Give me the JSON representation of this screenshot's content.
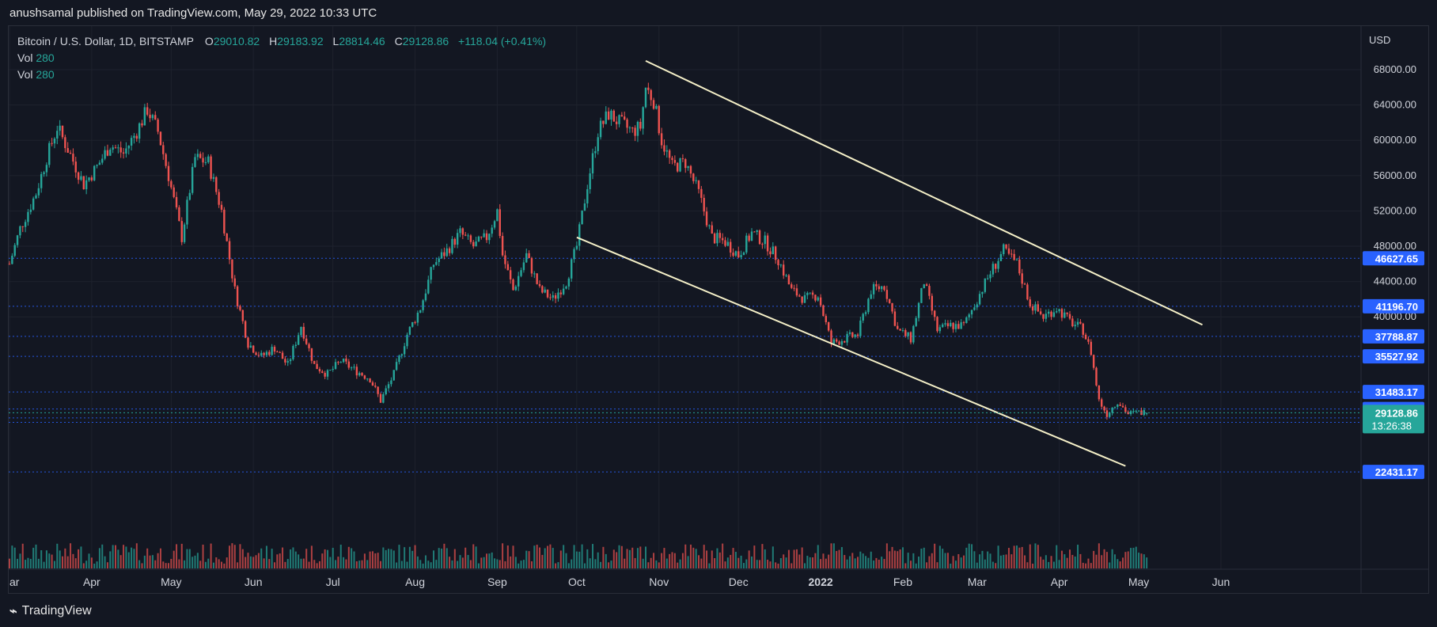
{
  "header": {
    "published": "anushsamal published on TradingView.com, May 29, 2022 10:33 UTC"
  },
  "legend": {
    "symbol": "Bitcoin / U.S. Dollar, 1D, BITSTAMP",
    "open_label": "O",
    "open": "29010.82",
    "high_label": "H",
    "high": "29183.92",
    "low_label": "L",
    "low": "28814.46",
    "close_label": "C",
    "close": "29128.86",
    "change": "+118.04 (+0.41%)",
    "vol1_label": "Vol",
    "vol1": "280",
    "vol2_label": "Vol",
    "vol2": "280"
  },
  "footer": {
    "brand": "TradingView"
  },
  "colors": {
    "up": "#26a69a",
    "down": "#ef5350",
    "trend": "#f5f0c8",
    "level_line": "#2962ff",
    "level_badge": "#2962ff",
    "price_badge": "#26a69a"
  },
  "chart_data": {
    "type": "candlestick",
    "currency_label": "USD",
    "y_ticks": [
      68000,
      64000,
      60000,
      56000,
      52000,
      48000,
      44000,
      40000
    ],
    "y_tick_labels": [
      "68000.00",
      "64000.00",
      "60000.00",
      "56000.00",
      "52000.00",
      "48000.00",
      "44000.00",
      "40000.00"
    ],
    "x_labels": [
      "ar",
      "Apr",
      "May",
      "Jun",
      "Jul",
      "Aug",
      "Sep",
      "Oct",
      "Nov",
      "Dec",
      "2022",
      "Feb",
      "Mar",
      "Apr",
      "May",
      "Jun"
    ],
    "x_label_days": [
      0,
      31,
      61,
      92,
      122,
      153,
      184,
      214,
      245,
      275,
      306,
      337,
      365,
      396,
      426,
      457
    ],
    "price_levels": [
      {
        "label": "46627.65",
        "value": 46627.65
      },
      {
        "label": "41196.70",
        "value": 41196.7
      },
      {
        "label": "37788.87",
        "value": 37788.87
      },
      {
        "label": "35527.92",
        "value": 35527.92
      },
      {
        "label": "31483.17",
        "value": 31483.17
      },
      {
        "label": "29559.47",
        "value": 29559.47
      },
      {
        "label": "28553.30",
        "value": 28553.3
      },
      {
        "label": "28050.21",
        "value": 28050.21
      },
      {
        "label": "22431.17",
        "value": 22431.17
      }
    ],
    "current_price": {
      "label": "29128.86",
      "countdown": "13:26:38",
      "value": 29128.86
    },
    "trendlines": [
      {
        "from": {
          "day": 240,
          "price": 69000
        },
        "to": {
          "day": 450,
          "price": 39100
        }
      },
      {
        "from": {
          "day": 214,
          "price": 49000
        },
        "to": {
          "day": 421,
          "price": 23100
        }
      }
    ],
    "close_anchors": [
      {
        "day": 0,
        "close": 46000
      },
      {
        "day": 4,
        "close": 50000
      },
      {
        "day": 10,
        "close": 54000
      },
      {
        "day": 14,
        "close": 58000
      },
      {
        "day": 18,
        "close": 61500
      },
      {
        "day": 22,
        "close": 59000
      },
      {
        "day": 28,
        "close": 55000
      },
      {
        "day": 33,
        "close": 57000
      },
      {
        "day": 38,
        "close": 59500
      },
      {
        "day": 43,
        "close": 58500
      },
      {
        "day": 48,
        "close": 61000
      },
      {
        "day": 52,
        "close": 63500
      },
      {
        "day": 56,
        "close": 61000
      },
      {
        "day": 60,
        "close": 56000
      },
      {
        "day": 65,
        "close": 49000
      },
      {
        "day": 70,
        "close": 58000
      },
      {
        "day": 75,
        "close": 57500
      },
      {
        "day": 80,
        "close": 52000
      },
      {
        "day": 85,
        "close": 43000
      },
      {
        "day": 90,
        "close": 37000
      },
      {
        "day": 95,
        "close": 35500
      },
      {
        "day": 100,
        "close": 36500
      },
      {
        "day": 105,
        "close": 34500
      },
      {
        "day": 110,
        "close": 39000
      },
      {
        "day": 115,
        "close": 34500
      },
      {
        "day": 120,
        "close": 33500
      },
      {
        "day": 125,
        "close": 35000
      },
      {
        "day": 130,
        "close": 34000
      },
      {
        "day": 136,
        "close": 33000
      },
      {
        "day": 140,
        "close": 30500
      },
      {
        "day": 145,
        "close": 33500
      },
      {
        "day": 150,
        "close": 38000
      },
      {
        "day": 155,
        "close": 41000
      },
      {
        "day": 160,
        "close": 46000
      },
      {
        "day": 165,
        "close": 47500
      },
      {
        "day": 170,
        "close": 49500
      },
      {
        "day": 175,
        "close": 48000
      },
      {
        "day": 180,
        "close": 49000
      },
      {
        "day": 184,
        "close": 52000
      },
      {
        "day": 186,
        "close": 47000
      },
      {
        "day": 190,
        "close": 43000
      },
      {
        "day": 195,
        "close": 47000
      },
      {
        "day": 200,
        "close": 43000
      },
      {
        "day": 205,
        "close": 42000
      },
      {
        "day": 210,
        "close": 44000
      },
      {
        "day": 214,
        "close": 48000
      },
      {
        "day": 218,
        "close": 55000
      },
      {
        "day": 222,
        "close": 61000
      },
      {
        "day": 226,
        "close": 63000
      },
      {
        "day": 230,
        "close": 62000
      },
      {
        "day": 235,
        "close": 61000
      },
      {
        "day": 238,
        "close": 61500
      },
      {
        "day": 240,
        "close": 66000
      },
      {
        "day": 243,
        "close": 64500
      },
      {
        "day": 246,
        "close": 60000
      },
      {
        "day": 250,
        "close": 57000
      },
      {
        "day": 255,
        "close": 57500
      },
      {
        "day": 260,
        "close": 54000
      },
      {
        "day": 265,
        "close": 49000
      },
      {
        "day": 270,
        "close": 48500
      },
      {
        "day": 275,
        "close": 47000
      },
      {
        "day": 280,
        "close": 49500
      },
      {
        "day": 285,
        "close": 48500
      },
      {
        "day": 290,
        "close": 46500
      },
      {
        "day": 295,
        "close": 43000
      },
      {
        "day": 300,
        "close": 42000
      },
      {
        "day": 305,
        "close": 42500
      },
      {
        "day": 310,
        "close": 37000
      },
      {
        "day": 315,
        "close": 37500
      },
      {
        "day": 320,
        "close": 38000
      },
      {
        "day": 325,
        "close": 43000
      },
      {
        "day": 330,
        "close": 43500
      },
      {
        "day": 335,
        "close": 38500
      },
      {
        "day": 340,
        "close": 37500
      },
      {
        "day": 345,
        "close": 44000
      },
      {
        "day": 350,
        "close": 38500
      },
      {
        "day": 355,
        "close": 39000
      },
      {
        "day": 360,
        "close": 39000
      },
      {
        "day": 365,
        "close": 42000
      },
      {
        "day": 370,
        "close": 45000
      },
      {
        "day": 375,
        "close": 47500
      },
      {
        "day": 380,
        "close": 46000
      },
      {
        "day": 385,
        "close": 41500
      },
      {
        "day": 390,
        "close": 40000
      },
      {
        "day": 395,
        "close": 41000
      },
      {
        "day": 400,
        "close": 39500
      },
      {
        "day": 405,
        "close": 38500
      },
      {
        "day": 408,
        "close": 36000
      },
      {
        "day": 411,
        "close": 30500
      },
      {
        "day": 414,
        "close": 29000
      },
      {
        "day": 418,
        "close": 30500
      },
      {
        "day": 422,
        "close": 29000
      },
      {
        "day": 427,
        "close": 29200
      },
      {
        "day": 429,
        "close": 29128.86
      }
    ]
  }
}
